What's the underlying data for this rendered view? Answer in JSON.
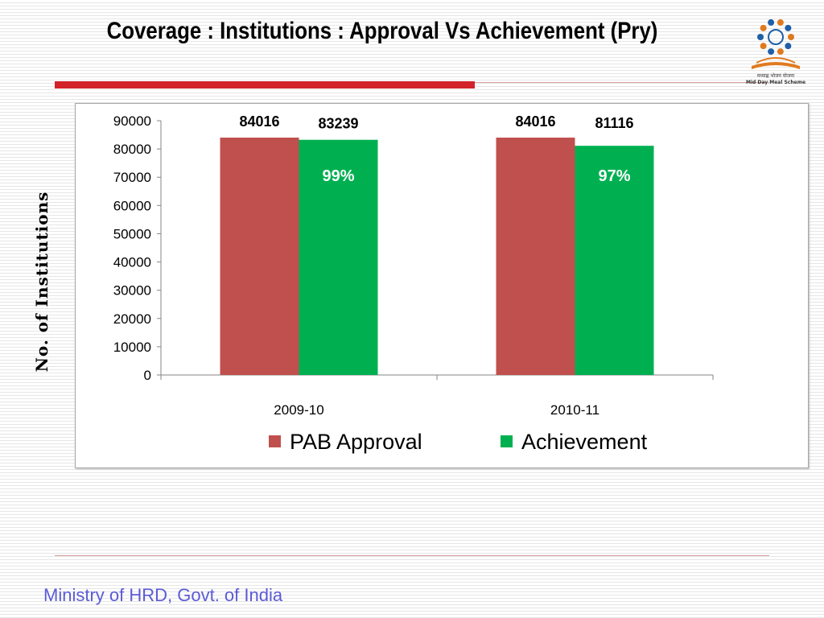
{
  "slide": {
    "title": "Coverage : Institutions : Approval Vs Achievement (Pry)",
    "footer": "Ministry of HRD, Govt. of India",
    "logo": {
      "icon": "mid-day-meal-scheme-logo",
      "text_line1": "मध्याह्न भोजन योजना",
      "text_line2": "Mid Day Meal Scheme"
    }
  },
  "colors": {
    "pab_approval": "#c0504d",
    "achievement": "#00b050",
    "accent_red": "#d2232a",
    "footer_text": "#5b5bd6"
  },
  "chart_data": {
    "type": "bar",
    "title": "",
    "xlabel": "",
    "ylabel": "No. of Institutions",
    "categories": [
      "2009-10",
      "2010-11"
    ],
    "series": [
      {
        "name": "PAB Approval",
        "values": [
          84016,
          84016
        ],
        "labels": [
          "84016",
          "84016"
        ]
      },
      {
        "name": "Achievement",
        "values": [
          83239,
          81116
        ],
        "labels": [
          "83239",
          "81116"
        ]
      }
    ],
    "annotations": [
      "99%",
      "97%"
    ],
    "ylim": [
      0,
      90000
    ],
    "yticks": [
      0,
      10000,
      20000,
      30000,
      40000,
      50000,
      60000,
      70000,
      80000,
      90000
    ],
    "ytick_labels": [
      "0",
      "10000",
      "20000",
      "30000",
      "40000",
      "50000",
      "60000",
      "70000",
      "80000",
      "90000"
    ],
    "grid": false,
    "legend_position": "bottom"
  }
}
